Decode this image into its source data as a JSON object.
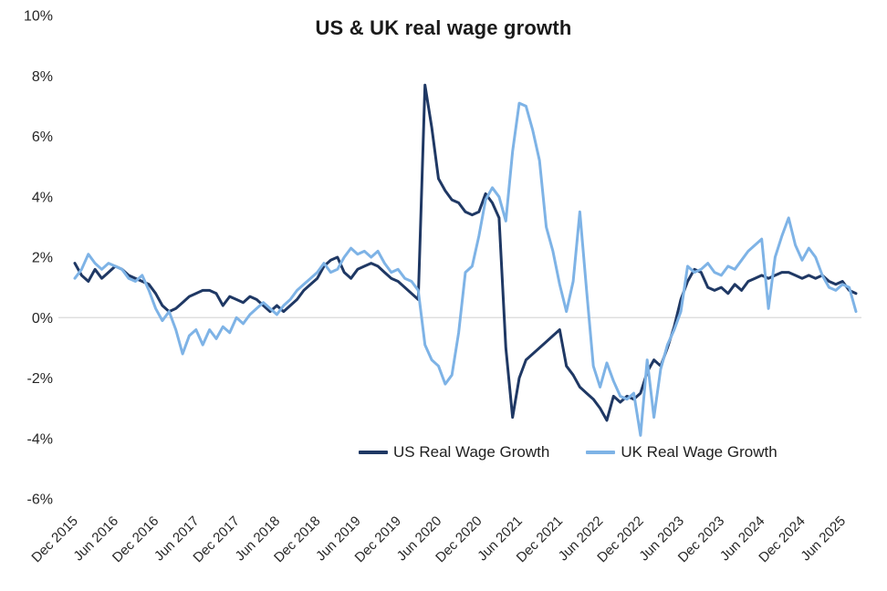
{
  "colors": {
    "text": "#262626",
    "zero_line": "#D9D9D9",
    "background": "#FFFFFF"
  },
  "chart_data": {
    "type": "line",
    "title": "US & UK real wage growth",
    "x_start": "Dec 2015",
    "x_frequency": "monthly",
    "x_tick_every_months": 6,
    "x_tick_labels": [
      "Dec 2015",
      "Jun 2016",
      "Dec 2016",
      "Jun 2017",
      "Dec 2017",
      "Jun 2018",
      "Dec 2018",
      "Jun 2019",
      "Dec 2019",
      "Jun 2020",
      "Dec 2020",
      "Jun 2021",
      "Dec 2021",
      "Jun 2022",
      "Dec 2022",
      "Jun 2023",
      "Dec 2023",
      "Jun 2024",
      "Dec 2024",
      "Jun 2025"
    ],
    "ylim": [
      -6,
      10
    ],
    "y_ticks": [
      10,
      8,
      6,
      4,
      2,
      0,
      -2,
      -4,
      -6
    ],
    "y_tick_suffix": "%",
    "grid": "zero-line-only",
    "legend_position": "inside-bottom-center",
    "series": [
      {
        "name": "US Real Wage Growth",
        "color": "#1F3864",
        "values": [
          1.8,
          1.4,
          1.2,
          1.6,
          1.3,
          1.5,
          1.7,
          1.6,
          1.4,
          1.3,
          1.2,
          1.1,
          0.8,
          0.4,
          0.2,
          0.3,
          0.5,
          0.7,
          0.8,
          0.9,
          0.9,
          0.8,
          0.4,
          0.7,
          0.6,
          0.5,
          0.7,
          0.6,
          0.4,
          0.2,
          0.4,
          0.2,
          0.4,
          0.6,
          0.9,
          1.1,
          1.3,
          1.7,
          1.9,
          2.0,
          1.5,
          1.3,
          1.6,
          1.7,
          1.8,
          1.7,
          1.5,
          1.3,
          1.2,
          1.0,
          0.8,
          0.6,
          7.7,
          6.3,
          4.6,
          4.2,
          3.9,
          3.8,
          3.5,
          3.4,
          3.5,
          4.1,
          3.8,
          3.3,
          -1.0,
          -3.3,
          -2.0,
          -1.4,
          -1.2,
          -1.0,
          -0.8,
          -0.6,
          -0.4,
          -1.6,
          -1.9,
          -2.3,
          -2.5,
          -2.7,
          -3.0,
          -3.4,
          -2.6,
          -2.8,
          -2.6,
          -2.7,
          -2.5,
          -1.8,
          -1.4,
          -1.6,
          -1.0,
          -0.3,
          0.6,
          1.2,
          1.6,
          1.5,
          1.0,
          0.9,
          1.0,
          0.8,
          1.1,
          0.9,
          1.2,
          1.3,
          1.4,
          1.3,
          1.4,
          1.5,
          1.5,
          1.4,
          1.3,
          1.4,
          1.3,
          1.4,
          1.2,
          1.1,
          1.2,
          0.9,
          0.8
        ]
      },
      {
        "name": "UK Real Wage Growth",
        "color": "#7EB3E6",
        "values": [
          1.3,
          1.6,
          2.1,
          1.8,
          1.6,
          1.8,
          1.7,
          1.6,
          1.3,
          1.2,
          1.4,
          0.9,
          0.3,
          -0.1,
          0.2,
          -0.4,
          -1.2,
          -0.6,
          -0.4,
          -0.9,
          -0.4,
          -0.7,
          -0.3,
          -0.5,
          0.0,
          -0.2,
          0.1,
          0.3,
          0.5,
          0.3,
          0.1,
          0.4,
          0.6,
          0.9,
          1.1,
          1.3,
          1.5,
          1.8,
          1.5,
          1.6,
          2.0,
          2.3,
          2.1,
          2.2,
          2.0,
          2.2,
          1.8,
          1.5,
          1.6,
          1.3,
          1.2,
          0.9,
          -0.9,
          -1.4,
          -1.6,
          -2.2,
          -1.9,
          -0.5,
          1.5,
          1.7,
          2.7,
          3.9,
          4.3,
          4.0,
          3.2,
          5.5,
          7.1,
          7.0,
          6.2,
          5.2,
          3.0,
          2.2,
          1.1,
          0.2,
          1.2,
          3.5,
          0.9,
          -1.6,
          -2.3,
          -1.5,
          -2.1,
          -2.6,
          -2.7,
          -2.5,
          -3.9,
          -1.4,
          -3.3,
          -1.7,
          -0.9,
          -0.4,
          0.2,
          1.7,
          1.5,
          1.6,
          1.8,
          1.5,
          1.4,
          1.7,
          1.6,
          1.9,
          2.2,
          2.4,
          2.6,
          0.3,
          2.0,
          2.7,
          3.3,
          2.4,
          1.9,
          2.3,
          2.0,
          1.4,
          1.0,
          0.9,
          1.1,
          1.0,
          0.2
        ]
      }
    ]
  }
}
